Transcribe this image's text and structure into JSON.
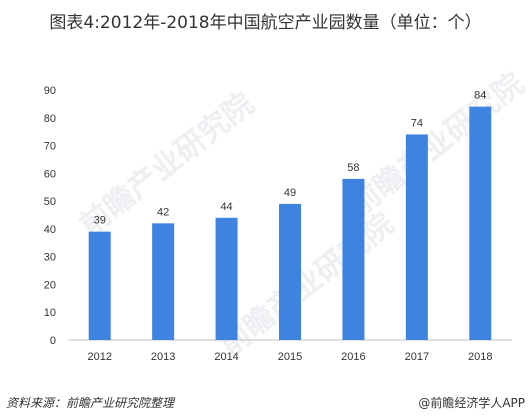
{
  "title": "图表4:2012年-2018年中国航空产业园数量（单位：个）",
  "footer": {
    "source": "资料来源：前瞻产业研究院整理",
    "brand": "@前瞻经济学人APP"
  },
  "watermark": "前瞻产业研究院",
  "colors": {
    "bar": "#3f83e0",
    "grid": "#e6e6e6",
    "axis": "#bfbfbf"
  },
  "chart_data": {
    "type": "bar",
    "categories": [
      "2012",
      "2013",
      "2014",
      "2015",
      "2016",
      "2017",
      "2018"
    ],
    "values": [
      39,
      42,
      44,
      49,
      58,
      74,
      84
    ],
    "ylim": [
      0,
      90
    ],
    "yticks": [
      0,
      10,
      20,
      30,
      40,
      50,
      60,
      70,
      80,
      90
    ],
    "grid": false,
    "xlabel": "",
    "ylabel": ""
  }
}
